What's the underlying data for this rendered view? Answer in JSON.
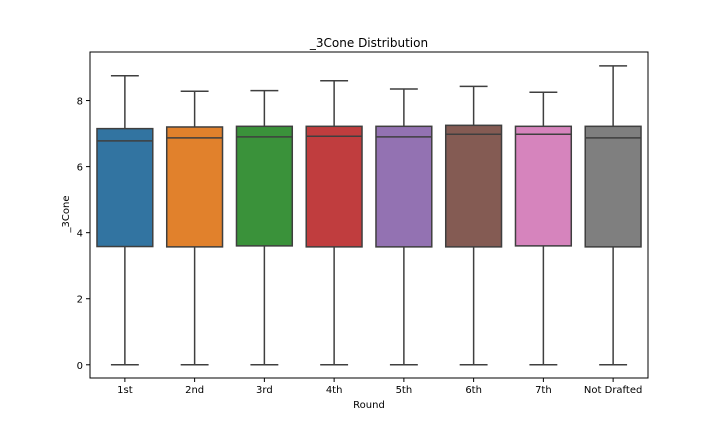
{
  "chart_data": {
    "type": "box",
    "title": "_3Cone Distribution",
    "xlabel": "Round",
    "ylabel": "_3Cone",
    "categories": [
      "1st",
      "2nd",
      "3rd",
      "4th",
      "5th",
      "6th",
      "7th",
      "Not Drafted"
    ],
    "ylim": [
      -0.4,
      9.47
    ],
    "yticks": [
      0,
      2,
      4,
      6,
      8
    ],
    "grid": false,
    "boxes": [
      {
        "category": "1st",
        "min": 0.0,
        "q1": 3.58,
        "median": 6.78,
        "q3": 7.15,
        "max": 8.75,
        "color": "#3274a1"
      },
      {
        "category": "2nd",
        "min": 0.0,
        "q1": 3.57,
        "median": 6.87,
        "q3": 7.2,
        "max": 8.28,
        "color": "#e1812c"
      },
      {
        "category": "3rd",
        "min": 0.0,
        "q1": 3.6,
        "median": 6.9,
        "q3": 7.22,
        "max": 8.3,
        "color": "#3a923a"
      },
      {
        "category": "4th",
        "min": 0.0,
        "q1": 3.57,
        "median": 6.92,
        "q3": 7.22,
        "max": 8.6,
        "color": "#c03d3e"
      },
      {
        "category": "5th",
        "min": 0.0,
        "q1": 3.57,
        "median": 6.9,
        "q3": 7.22,
        "max": 8.35,
        "color": "#9372b2"
      },
      {
        "category": "6th",
        "min": 0.0,
        "q1": 3.57,
        "median": 6.98,
        "q3": 7.25,
        "max": 8.43,
        "color": "#845b53"
      },
      {
        "category": "7th",
        "min": 0.0,
        "q1": 3.6,
        "median": 6.98,
        "q3": 7.22,
        "max": 8.25,
        "color": "#d684bd"
      },
      {
        "category": "Not Drafted",
        "min": 0.0,
        "q1": 3.57,
        "median": 6.87,
        "q3": 7.22,
        "max": 9.05,
        "color": "#7f7f7f"
      }
    ]
  }
}
